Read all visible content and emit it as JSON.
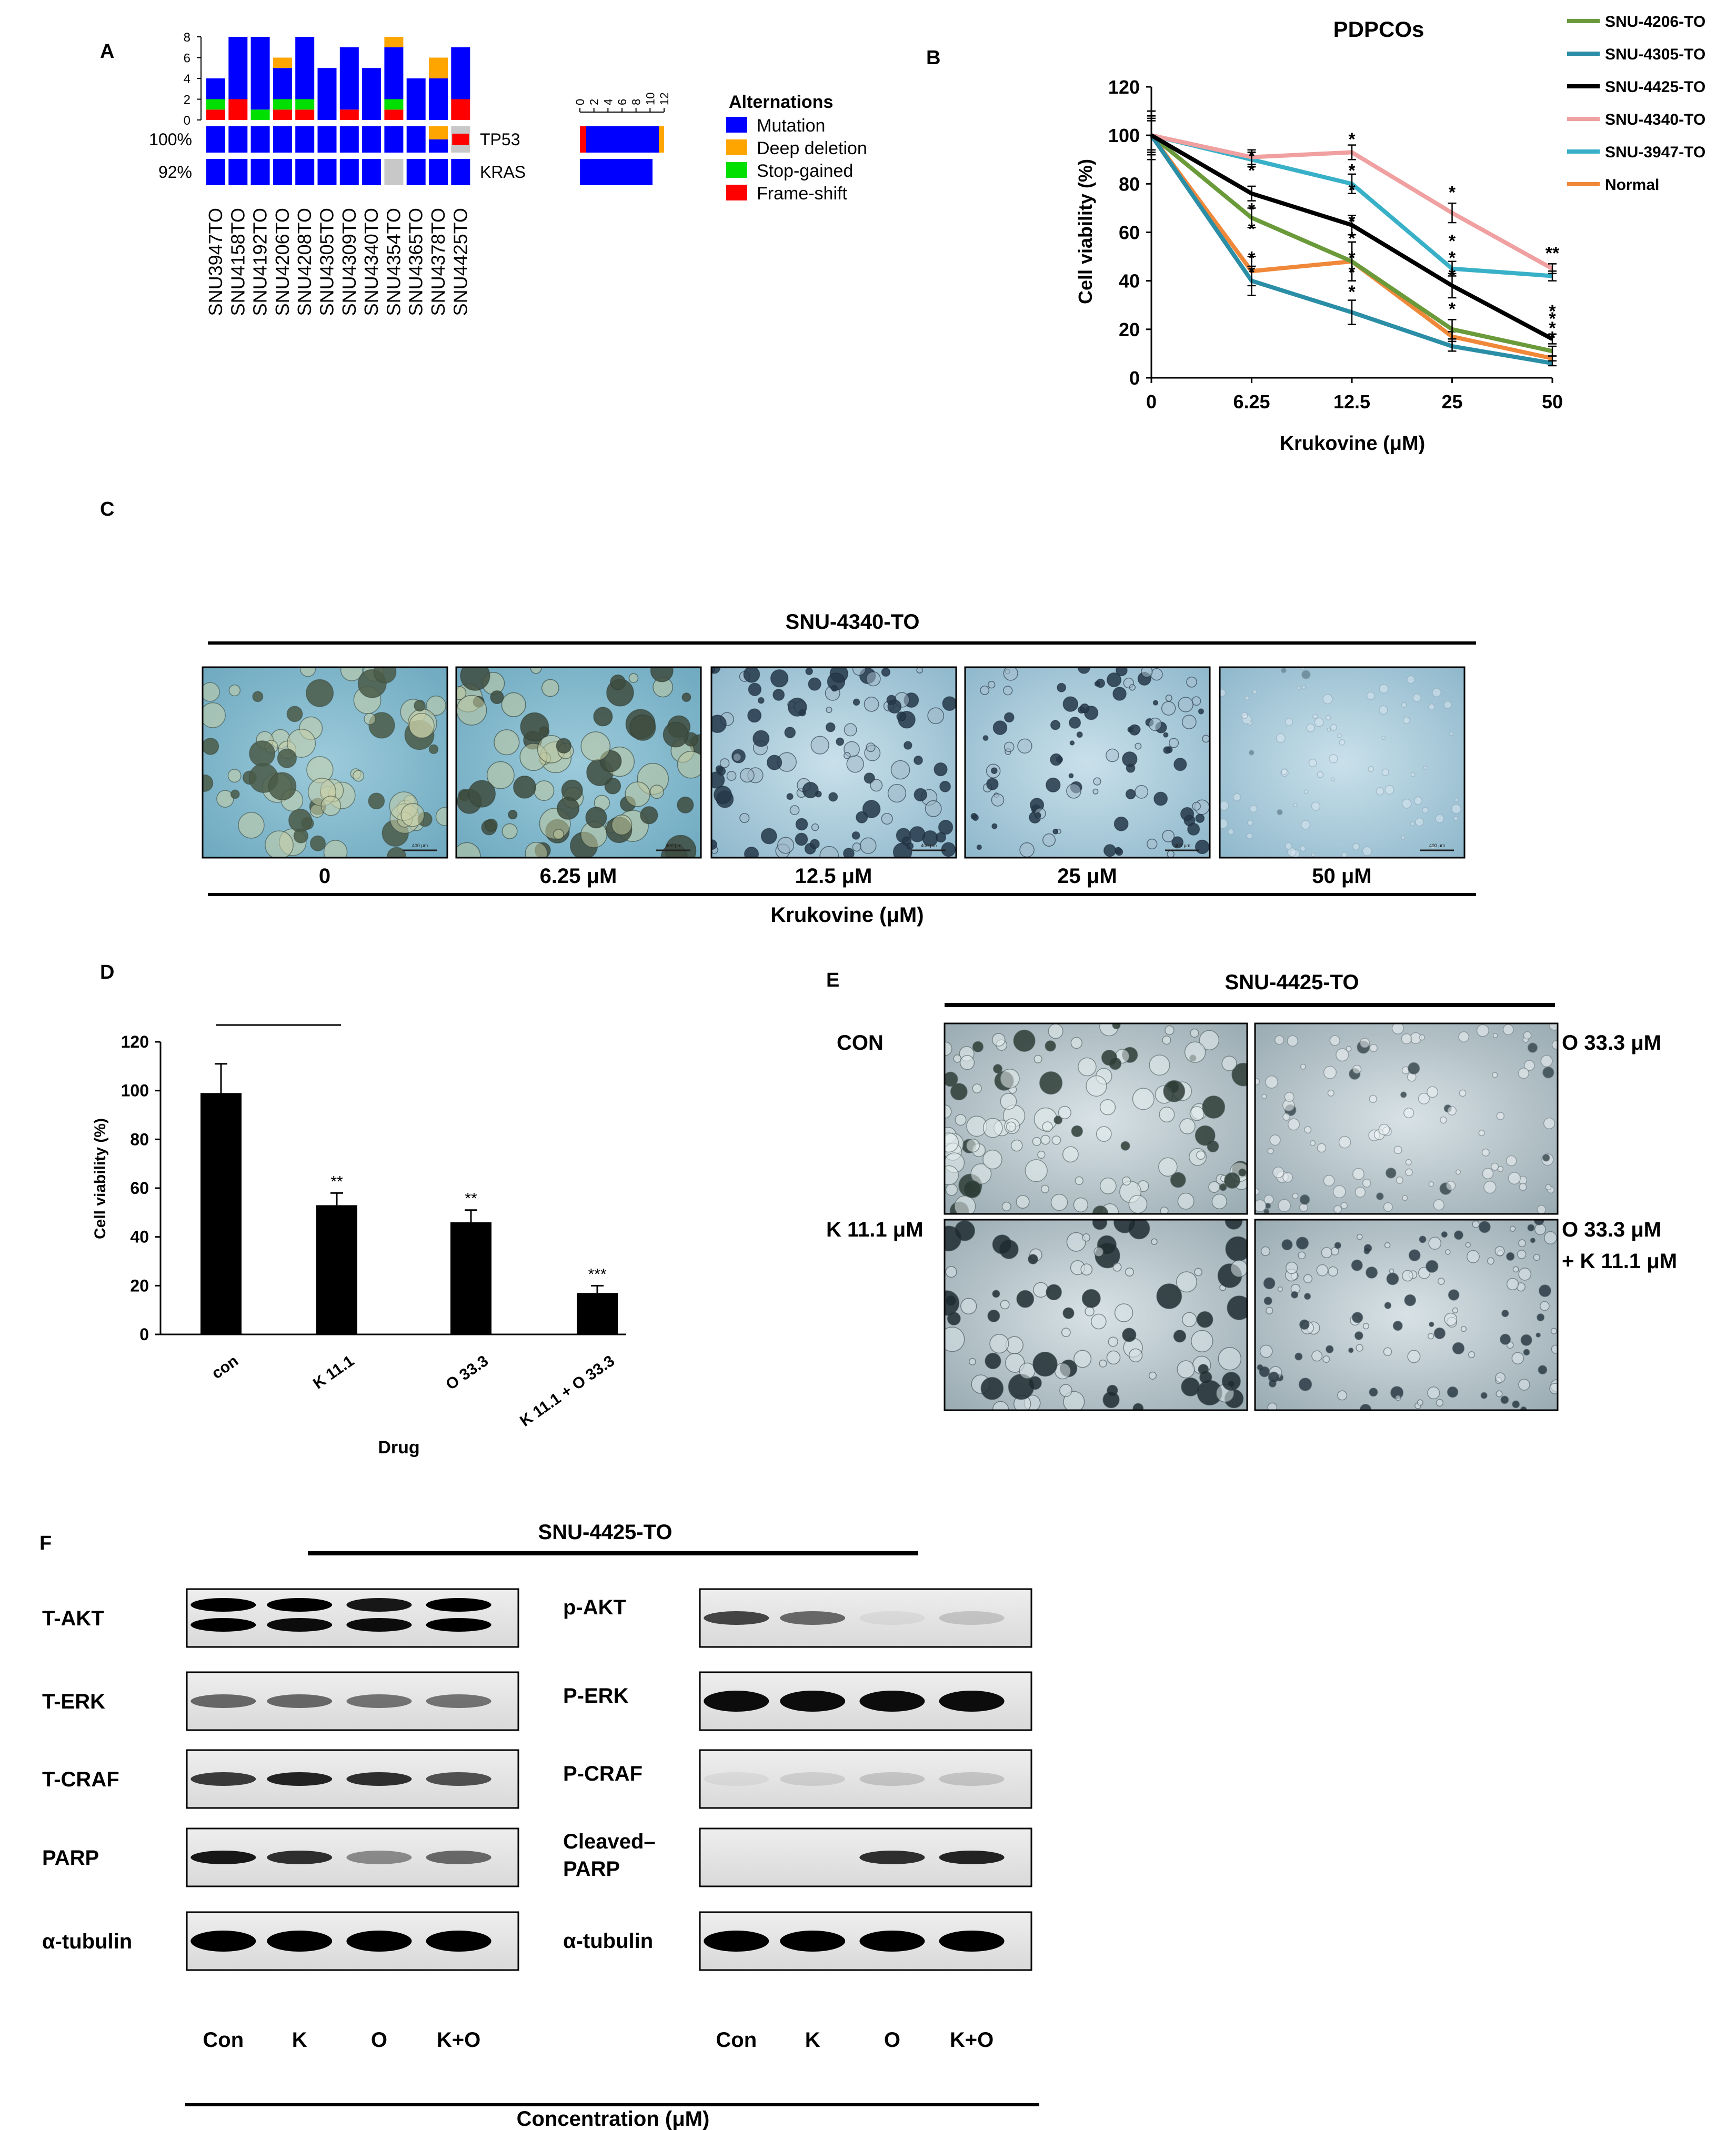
{
  "panel_labels": {
    "a": "A",
    "b": "B",
    "c": "C",
    "d": "D",
    "e": "E",
    "f": "F"
  },
  "colors": {
    "mutation": "#0000ff",
    "deep_deletion": "#ffa500",
    "stop_gained": "#00e000",
    "frame_shift": "#ff0000",
    "missing": "#c8c8c8",
    "snu4206": "#6a9a3a",
    "snu4305": "#2a8ea6",
    "snu4425": "#000000",
    "snu4340": "#f0a0a0",
    "snu3947": "#38b0c8",
    "normal": "#f0883a",
    "organoid_bg": "#8dbed0"
  },
  "chart_data": [
    {
      "type": "bar",
      "panel": "A",
      "title": "",
      "ylim": [
        0,
        8
      ],
      "yticks": [
        "0",
        "2",
        "4",
        "6",
        "8"
      ],
      "categories": [
        "SNU3947TO",
        "SNU4158TO",
        "SNU4192TO",
        "SNU4206TO",
        "SNU4208TO",
        "SNU4305TO",
        "SNU4309TO",
        "SNU4340TO",
        "SNU4354TO",
        "SNU4365TO",
        "SNU4378TO",
        "SNU4425TO"
      ],
      "series": [
        {
          "name": "Frame-shift",
          "values": [
            1,
            2,
            0,
            1,
            1,
            0,
            1,
            0,
            1,
            0,
            0,
            2
          ]
        },
        {
          "name": "Stop-gained",
          "values": [
            1,
            0,
            1,
            1,
            1,
            0,
            0,
            0,
            1,
            0,
            0,
            0
          ]
        },
        {
          "name": "Mutation",
          "values": [
            2,
            6,
            7,
            3,
            6,
            5,
            6,
            5,
            5,
            4,
            4,
            5
          ]
        },
        {
          "name": "Deep deletion",
          "values": [
            0,
            0,
            0,
            1,
            0,
            0,
            0,
            0,
            1,
            0,
            2,
            0
          ]
        }
      ],
      "oncoprint": {
        "genes": [
          {
            "name": "TP53",
            "pct": "100%",
            "cells": [
              "M",
              "M",
              "M",
              "M",
              "M",
              "M",
              "M",
              "M",
              "M",
              "M",
              "D",
              "F"
            ]
          },
          {
            "name": "KRAS",
            "pct": "92%",
            "cells": [
              "M",
              "M",
              "M",
              "M",
              "M",
              "M",
              "M",
              "M",
              "N",
              "M",
              "M",
              "M"
            ]
          }
        ],
        "mini_axis_ticks": [
          "0",
          "2",
          "4",
          "6",
          "8",
          "10",
          "12"
        ]
      },
      "legend": {
        "title": "Alternations",
        "items": [
          "Mutation",
          "Deep deletion",
          "Stop-gained",
          "Frame-shift"
        ]
      }
    },
    {
      "type": "line",
      "panel": "B",
      "title": "PDPCOs",
      "xlabel": "Krukovine (μM)",
      "ylabel": "Cell viability (%)",
      "x": [
        "0",
        "6.25",
        "12.5",
        "25",
        "50"
      ],
      "ylim": [
        0,
        120
      ],
      "yticks": [
        "0",
        "20",
        "40",
        "60",
        "80",
        "100",
        "120"
      ],
      "series": [
        {
          "name": "SNU-4206-TO",
          "values": [
            100,
            66,
            48,
            20,
            11
          ],
          "err": [
            10,
            4,
            8,
            4,
            2
          ]
        },
        {
          "name": "SNU-4305-TO",
          "values": [
            100,
            40,
            27,
            13,
            6
          ],
          "err": [
            8,
            6,
            5,
            2,
            1
          ]
        },
        {
          "name": "SNU-4425-TO",
          "values": [
            100,
            76,
            63,
            38,
            16
          ],
          "err": [
            10,
            3,
            4,
            5,
            2
          ]
        },
        {
          "name": "SNU-4340-TO",
          "values": [
            100,
            91,
            93,
            68,
            45
          ],
          "err": [
            6,
            3,
            3,
            4,
            2
          ]
        },
        {
          "name": "SNU-3947-TO",
          "values": [
            100,
            90,
            80,
            45,
            42
          ],
          "err": [
            8,
            3,
            4,
            3,
            2
          ]
        },
        {
          "name": "Normal",
          "values": [
            100,
            44,
            48,
            17,
            8
          ],
          "err": [
            7,
            6,
            8,
            2,
            1
          ]
        }
      ],
      "stars": [
        "*",
        "**",
        "**",
        "***",
        "****"
      ]
    },
    {
      "type": "bar",
      "panel": "D",
      "title": "",
      "xlabel": "Drug",
      "ylabel": "Cell viability (%)",
      "categories": [
        "con",
        "K 11.1",
        "O 33.3",
        "K 11.1 + O 33.3"
      ],
      "values": [
        99,
        53,
        46,
        17
      ],
      "err": [
        12,
        5,
        5,
        3
      ],
      "stars": [
        "",
        "**",
        "**",
        "***"
      ],
      "ylim": [
        0,
        120
      ],
      "yticks": [
        "0",
        "20",
        "40",
        "60",
        "80",
        "100",
        "120"
      ]
    }
  ],
  "panel_c": {
    "title": "SNU-4340-TO",
    "doses": [
      "0",
      "6.25 μM",
      "12.5 μM",
      "25 μM",
      "50 μM"
    ],
    "xlabel": "Krukovine (μM)",
    "scale_bar": "400 μm"
  },
  "panel_e": {
    "title": "SNU-4425-TO",
    "labels": {
      "con": "CON",
      "o": "O 33.3 μM",
      "k": "K 11.1 μM",
      "ko_1": "O 33.3 μM",
      "ko_2": "+ K 11.1 μM"
    }
  },
  "panel_f": {
    "title": "SNU-4425-TO",
    "left_labels": [
      "T-AKT",
      "T-ERK",
      "T-CRAF",
      "PARP",
      "α-tubulin"
    ],
    "right_labels": [
      "p-AKT",
      "P-ERK",
      "P-CRAF",
      "Cleaved–",
      "PARP",
      "α-tubulin"
    ],
    "lanes": [
      "Con",
      "K",
      "O",
      "K+O"
    ],
    "xlabel": "Concentration (μM)"
  }
}
